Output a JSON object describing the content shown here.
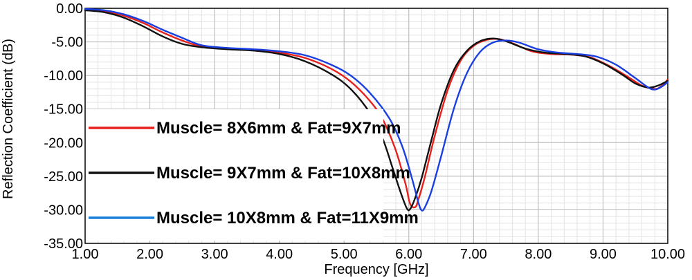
{
  "chart_data": {
    "type": "line",
    "title": "",
    "xlabel": "Frequency [GHz]",
    "ylabel": "Reflection Coefficient (dB)",
    "xlim": [
      1.0,
      10.0
    ],
    "ylim": [
      -35.0,
      0.0
    ],
    "x_ticks": [
      "1.00",
      "2.00",
      "3.00",
      "4.00",
      "5.00",
      "6.00",
      "7.00",
      "8.00",
      "9.00",
      "10.00"
    ],
    "y_ticks": [
      "0.00",
      "-5.00",
      "-10.00",
      "-15.00",
      "-20.00",
      "-25.00",
      "-30.00",
      "-35.00"
    ],
    "grid": true,
    "legend_position": "left",
    "series": [
      {
        "name": "Muscle= 8X6mm & Fat=9X7mm",
        "color": "#e8201b",
        "x": [
          1.0,
          1.3,
          1.6,
          1.9,
          2.2,
          2.5,
          2.8,
          3.2,
          3.6,
          4.0,
          4.4,
          4.8,
          5.1,
          5.4,
          5.6,
          5.8,
          5.95,
          6.02,
          6.1,
          6.15,
          6.25,
          6.4,
          6.6,
          6.8,
          7.0,
          7.2,
          7.4,
          7.6,
          7.9,
          8.2,
          8.5,
          8.8,
          9.1,
          9.4,
          9.6,
          9.8,
          9.9,
          10.0
        ],
        "y": [
          -0.2,
          -0.4,
          -1.1,
          -2.2,
          -3.6,
          -4.8,
          -5.7,
          -6.0,
          -6.2,
          -6.6,
          -7.4,
          -9.0,
          -10.9,
          -13.8,
          -16.6,
          -21.2,
          -26.2,
          -29.1,
          -29.6,
          -28.4,
          -25.0,
          -19.0,
          -12.2,
          -7.8,
          -5.6,
          -4.7,
          -4.6,
          -5.2,
          -6.4,
          -6.8,
          -6.9,
          -7.3,
          -8.6,
          -10.3,
          -11.5,
          -12.0,
          -11.6,
          -10.6
        ]
      },
      {
        "name": "Muscle= 9X7mm & Fat=10X8mm",
        "color": "#111111",
        "x": [
          1.0,
          1.3,
          1.6,
          1.9,
          2.2,
          2.5,
          2.8,
          3.2,
          3.6,
          4.0,
          4.4,
          4.8,
          5.1,
          5.4,
          5.6,
          5.75,
          5.88,
          5.97,
          6.02,
          6.1,
          6.2,
          6.35,
          6.5,
          6.7,
          6.9,
          7.1,
          7.3,
          7.5,
          7.8,
          8.1,
          8.4,
          8.7,
          9.0,
          9.3,
          9.5,
          9.7,
          9.85,
          10.0
        ],
        "y": [
          -0.3,
          -0.6,
          -1.4,
          -2.7,
          -4.2,
          -5.3,
          -5.8,
          -6.1,
          -6.3,
          -6.8,
          -7.9,
          -9.8,
          -12.0,
          -15.6,
          -19.5,
          -23.8,
          -27.6,
          -29.8,
          -29.9,
          -28.2,
          -25.2,
          -19.6,
          -14.2,
          -9.1,
          -6.3,
          -4.9,
          -4.5,
          -4.9,
          -6.0,
          -6.6,
          -6.8,
          -7.1,
          -8.2,
          -9.9,
          -11.2,
          -11.8,
          -11.5,
          -10.8
        ]
      },
      {
        "name": "Muscle= 10X8mm & Fat=11X9mm",
        "color": "#1a3fe0",
        "x": [
          1.0,
          1.3,
          1.6,
          1.9,
          2.2,
          2.5,
          2.8,
          3.2,
          3.6,
          4.0,
          4.4,
          4.8,
          5.1,
          5.4,
          5.7,
          5.9,
          6.05,
          6.15,
          6.2,
          6.25,
          6.35,
          6.5,
          6.7,
          6.9,
          7.1,
          7.3,
          7.5,
          7.7,
          8.0,
          8.3,
          8.6,
          8.9,
          9.2,
          9.5,
          9.7,
          9.8,
          9.9,
          10.0
        ],
        "y": [
          -0.1,
          -0.3,
          -0.9,
          -1.9,
          -3.2,
          -4.4,
          -5.5,
          -5.9,
          -6.1,
          -6.4,
          -7.0,
          -8.4,
          -10.0,
          -12.6,
          -16.4,
          -20.6,
          -25.4,
          -29.0,
          -30.1,
          -29.6,
          -27.2,
          -22.0,
          -14.8,
          -9.6,
          -6.5,
          -5.1,
          -4.8,
          -5.1,
          -6.1,
          -6.6,
          -6.8,
          -7.2,
          -8.4,
          -10.4,
          -11.8,
          -12.1,
          -11.7,
          -11.0
        ]
      }
    ]
  },
  "legend": {
    "items": [
      {
        "label": "Muscle= 8X6mm & Fat=9X7mm",
        "color": "#e8201b"
      },
      {
        "label": "Muscle= 9X7mm & Fat=10X8mm",
        "color": "#111111"
      },
      {
        "label": "Muscle= 10X8mm & Fat=11X9mm",
        "color": "#1a7fd9"
      }
    ]
  }
}
